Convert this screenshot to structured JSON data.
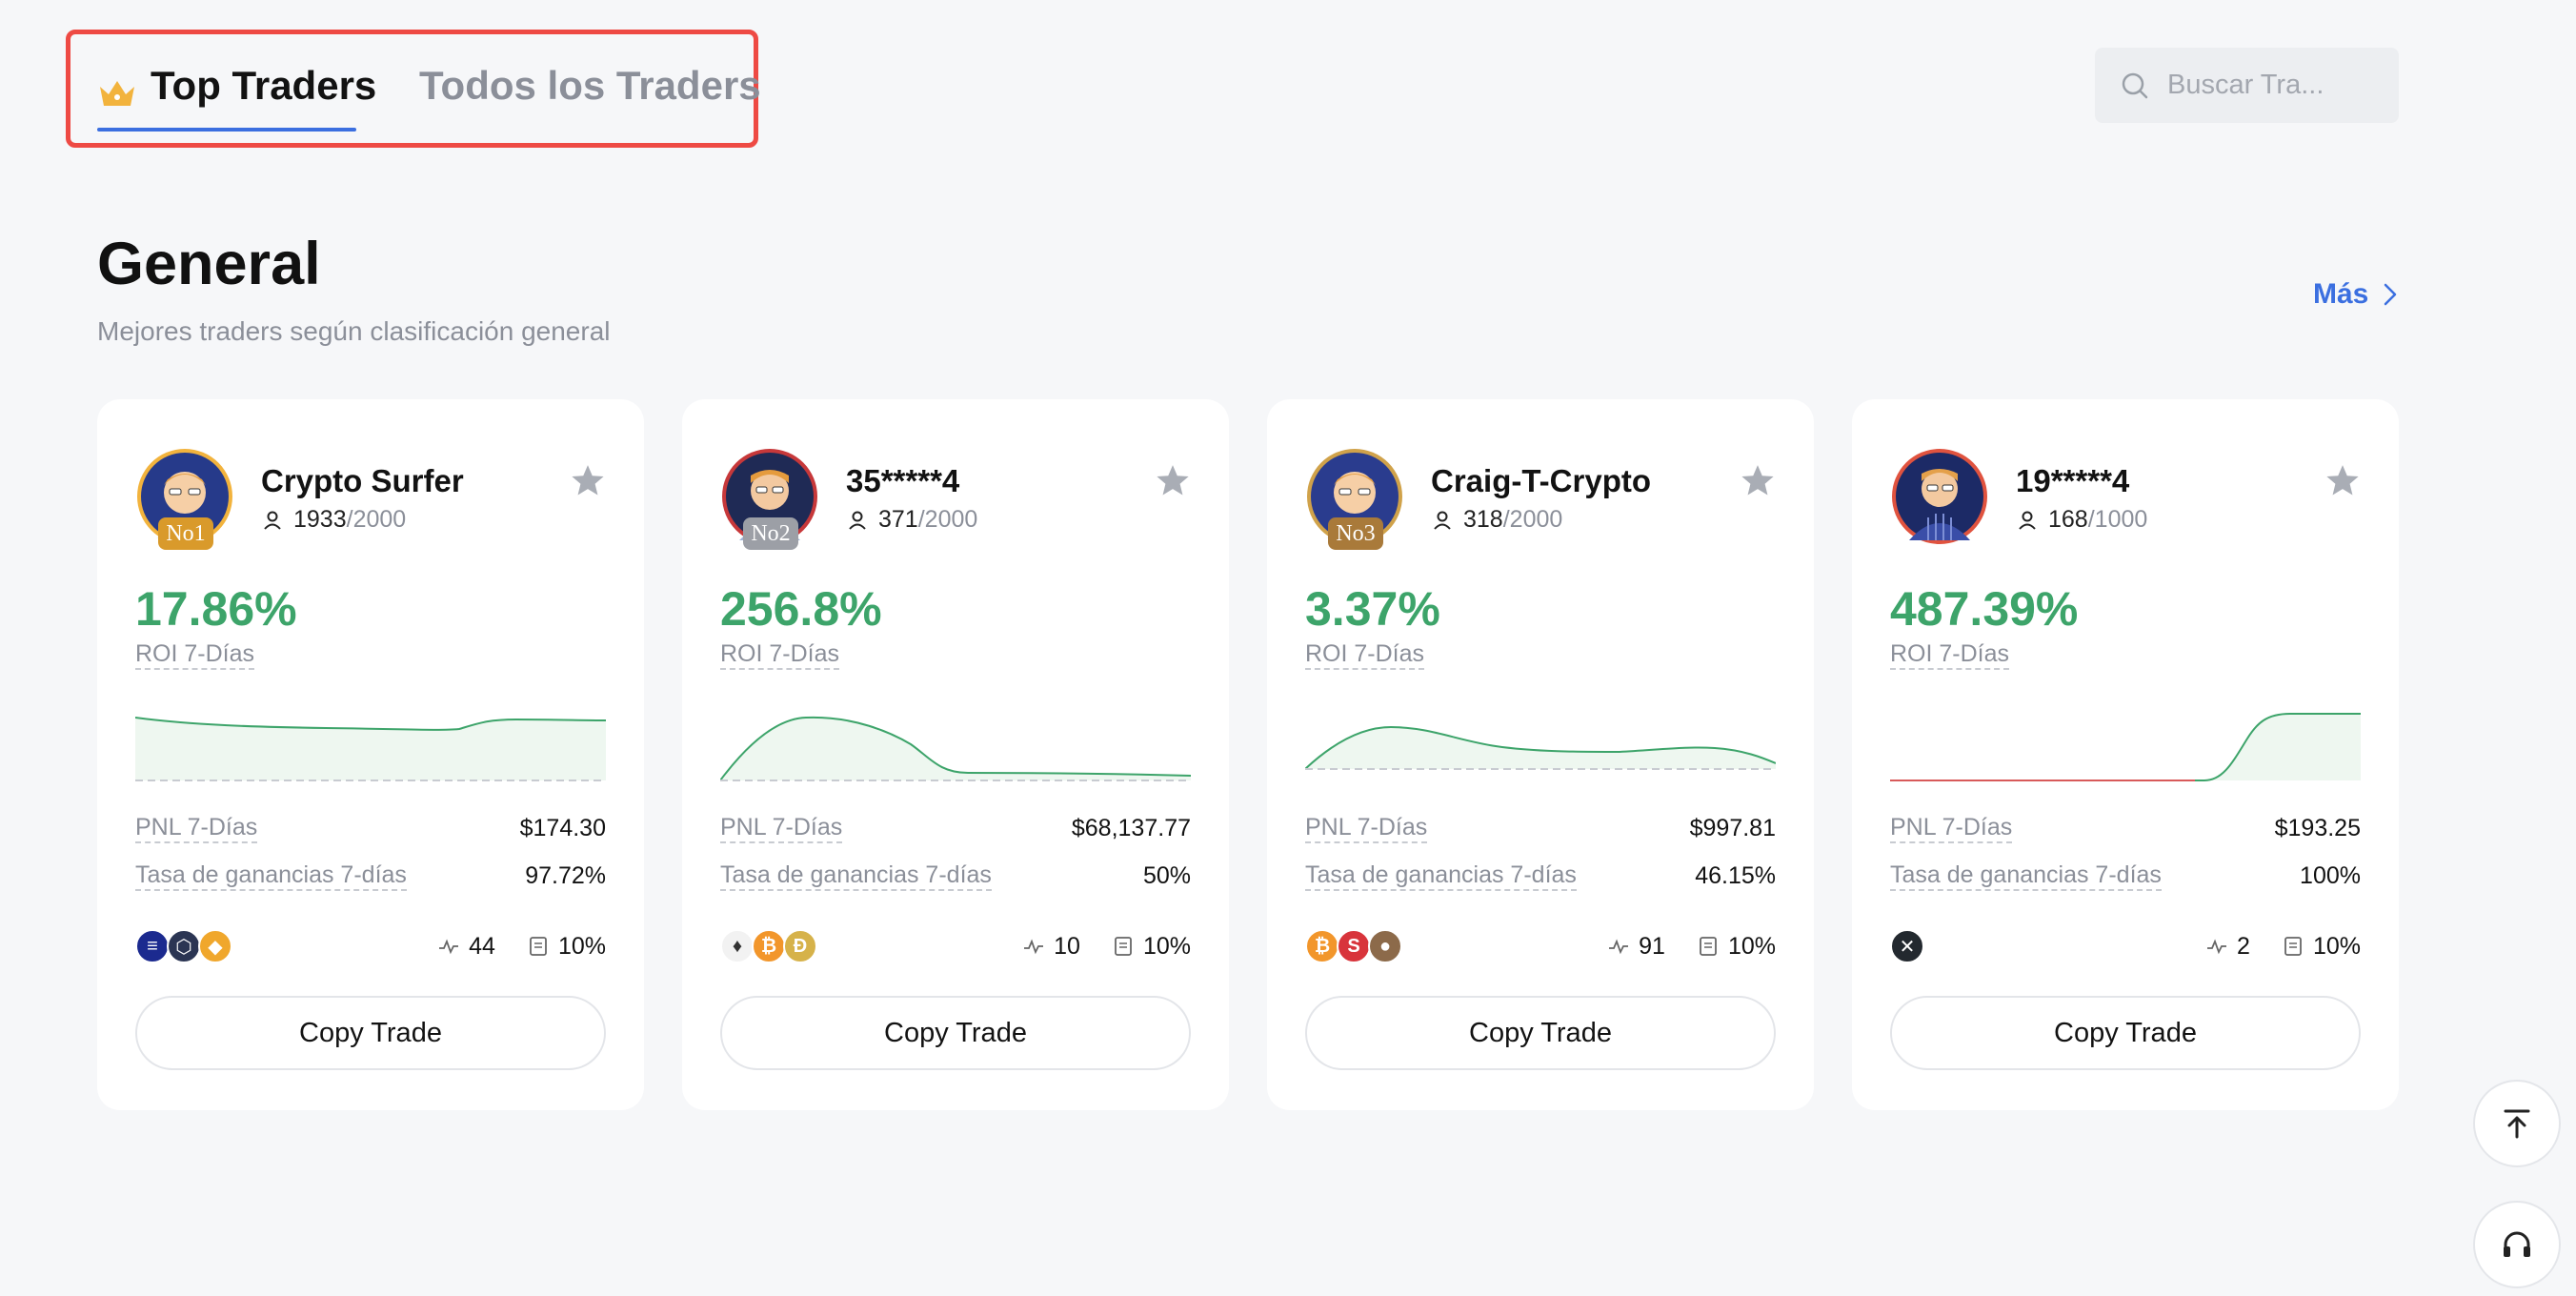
{
  "tabs": {
    "top_traders": "Top Traders",
    "all_traders": "Todos los Traders",
    "top_icon": "crown-icon"
  },
  "search": {
    "placeholder": "Buscar Tra...",
    "icon": "search-icon"
  },
  "section": {
    "title": "General",
    "subtitle": "Mejores traders según clasificación general",
    "more": "Más"
  },
  "colors": {
    "accent": "#3b6fe0",
    "positive": "#3da46a",
    "highlight_border": "#ee4a44"
  },
  "cards": [
    {
      "name": "Crypto Surfer",
      "rank": "No1",
      "followers": "1933",
      "followers_cap": "/2000",
      "roi": "17.86%",
      "roi_label": "ROI 7-Días",
      "pnl_label": "PNL 7-Días",
      "pnl": "$174.30",
      "win_label": "Tasa de ganancias 7-días",
      "win": "97.72%",
      "trades": "44",
      "share": "10%",
      "coins": [
        "solana-coin",
        "chainlink-coin",
        "bnb-coin"
      ],
      "button": "Copy Trade"
    },
    {
      "name": "35*****4",
      "rank": "No2",
      "followers": "371",
      "followers_cap": "/2000",
      "roi": "256.8%",
      "roi_label": "ROI 7-Días",
      "pnl_label": "PNL 7-Días",
      "pnl": "$68,137.77",
      "win_label": "Tasa de ganancias 7-días",
      "win": "50%",
      "trades": "10",
      "share": "10%",
      "coins": [
        "ethereum-coin",
        "bitcoin-coin",
        "dogecoin-coin"
      ],
      "button": "Copy Trade"
    },
    {
      "name": "Craig-T-Crypto",
      "rank": "No3",
      "followers": "318",
      "followers_cap": "/2000",
      "roi": "3.37%",
      "roi_label": "ROI 7-Días",
      "pnl_label": "PNL 7-Días",
      "pnl": "$997.81",
      "win_label": "Tasa de ganancias 7-días",
      "win": "46.15%",
      "trades": "91",
      "share": "10%",
      "coins": [
        "bitcoin-coin",
        "sui-coin",
        "dog-coin"
      ],
      "button": "Copy Trade"
    },
    {
      "name": "19*****4",
      "rank": "",
      "followers": "168",
      "followers_cap": "/1000",
      "roi": "487.39%",
      "roi_label": "ROI 7-Días",
      "pnl_label": "PNL 7-Días",
      "pnl": "$193.25",
      "win_label": "Tasa de ganancias 7-días",
      "win": "100%",
      "trades": "2",
      "share": "10%",
      "coins": [
        "xrp-coin"
      ],
      "button": "Copy Trade"
    }
  ]
}
